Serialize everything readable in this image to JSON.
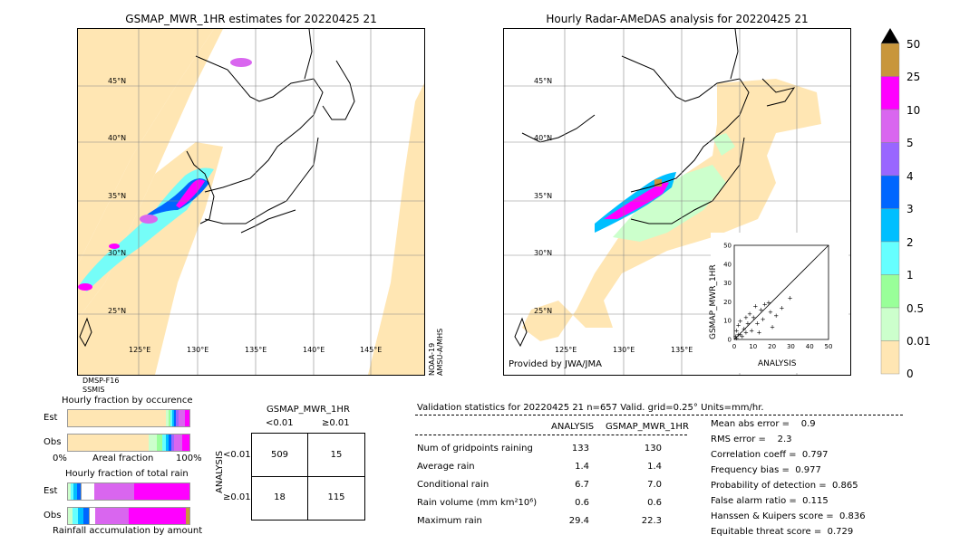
{
  "left_map": {
    "title": "GSMAP_MWR_1HR estimates for 20220425 21",
    "lat_labels": [
      "45°N",
      "40°N",
      "35°N",
      "30°N",
      "25°N"
    ],
    "lon_labels": [
      "125°E",
      "130°E",
      "135°E",
      "140°E",
      "145°E"
    ],
    "sensor_bottom": "DMSP-F16\nSSMIS",
    "sensor_bottom_line1": "DMSP-F16",
    "sensor_bottom_line2": "SSMIS",
    "sensor_right_line1": "NOAA-19",
    "sensor_right_line2": "AMSU-A/MHS"
  },
  "right_map": {
    "title": "Hourly Radar-AMeDAS analysis for 20220425 21",
    "lat_labels": [
      "45°N",
      "40°N",
      "35°N",
      "30°N",
      "25°N"
    ],
    "lon_labels": [
      "125°E",
      "130°E",
      "135°E"
    ],
    "credit": "Provided by JWA/JMA"
  },
  "scatter": {
    "xlabel": "ANALYSIS",
    "ylabel": "GSMAP_MWR_1HR",
    "ticks": [
      "0",
      "10",
      "20",
      "30",
      "40",
      "50"
    ],
    "xlim": [
      0,
      50
    ],
    "ylim": [
      0,
      50
    ],
    "points": [
      [
        1,
        1
      ],
      [
        2,
        8
      ],
      [
        3,
        3
      ],
      [
        5,
        6
      ],
      [
        6,
        4
      ],
      [
        8,
        14
      ],
      [
        10,
        12
      ],
      [
        12,
        9
      ],
      [
        14,
        16
      ],
      [
        15,
        11
      ],
      [
        18,
        20
      ],
      [
        20,
        7
      ],
      [
        22,
        13
      ],
      [
        25,
        17
      ],
      [
        29.4,
        22.3
      ],
      [
        3,
        10
      ],
      [
        4,
        2
      ],
      [
        7,
        9
      ],
      [
        9,
        5
      ],
      [
        11,
        18
      ],
      [
        13,
        4
      ],
      [
        16,
        19
      ],
      [
        19,
        15
      ],
      [
        1,
        5
      ],
      [
        2,
        3
      ],
      [
        0.5,
        2
      ],
      [
        6,
        12
      ]
    ]
  },
  "colorbar": {
    "labels": [
      "50",
      "25",
      "10",
      "5",
      "4",
      "3",
      "2",
      "1",
      "0.5",
      "0.01",
      "0"
    ],
    "colors": [
      "#c8963c",
      "#ff00ff",
      "#d966ef",
      "#9966ff",
      "#0066ff",
      "#00bfff",
      "#66ffff",
      "#99ff99",
      "#ccffcc",
      "#ffe6b3"
    ]
  },
  "fraction_occurrence": {
    "title": "Hourly fraction by occurence",
    "row_labels": [
      "Est",
      "Obs"
    ],
    "axis_left": "0%",
    "axis_mid": "Areal fraction",
    "axis_right": "100%"
  },
  "fraction_total": {
    "title": "Hourly fraction of total rain",
    "row_labels": [
      "Est",
      "Obs"
    ],
    "footer": "Rainfall accumulation by amount"
  },
  "contingency": {
    "title": "GSMAP_MWR_1HR",
    "col_labels": [
      "<0.01",
      "≥0.01"
    ],
    "row_axis": "ANALYSIS",
    "row_labels": [
      "<0.01",
      "≥0.01"
    ],
    "cells": [
      [
        "509",
        "15"
      ],
      [
        "18",
        "115"
      ]
    ]
  },
  "validation": {
    "header": "Validation statistics for 20220425 21  n=657 Valid. grid=0.25° Units=mm/hr.",
    "col_analysis": "ANALYSIS",
    "col_gsmap": "GSMAP_MWR_1HR",
    "rows": [
      {
        "label": "Num of gridpoints raining",
        "a": "133",
        "g": "130"
      },
      {
        "label": "Average rain",
        "a": "1.4",
        "g": "1.4"
      },
      {
        "label": "Conditional rain",
        "a": "6.7",
        "g": "7.0"
      },
      {
        "label": "Rain volume (mm km²10⁶)",
        "a": "0.6",
        "g": "0.6"
      },
      {
        "label": "Maximum rain",
        "a": "29.4",
        "g": "22.3"
      }
    ],
    "scores": [
      "Mean abs error =    0.9",
      "RMS error =    2.3",
      "Correlation coeff =  0.797",
      "Frequency bias =  0.977",
      "Probability of detection =  0.865",
      "False alarm ratio =  0.115",
      "Hanssen & Kuipers score =  0.836",
      "Equitable threat score =  0.729"
    ]
  }
}
